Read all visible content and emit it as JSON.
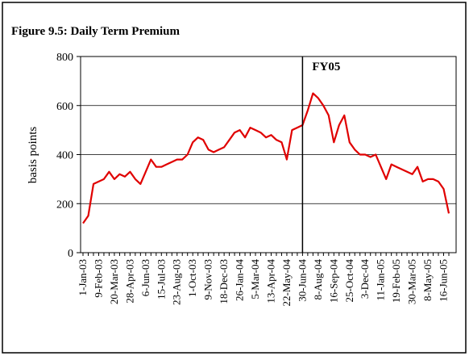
{
  "chart_data": {
    "type": "line",
    "title": "Figure 9.5: Daily Term Premium",
    "ylabel": "basis points",
    "categories": [
      "1-Jan-03",
      null,
      null,
      "9-Feb-03",
      null,
      null,
      "20-Mar-03",
      null,
      null,
      "28-Apr-03",
      null,
      null,
      "6-Jun-03",
      null,
      null,
      "15-Jul-03",
      null,
      null,
      "23-Aug-03",
      null,
      null,
      "1-Oct-03",
      null,
      null,
      "9-Nov-03",
      null,
      null,
      "18-Dec-03",
      null,
      null,
      "26-Jan-04",
      null,
      null,
      "5-Mar-04",
      null,
      null,
      "13-Apr-04",
      null,
      null,
      "22-May-04",
      null,
      null,
      "30-Jun-04",
      null,
      null,
      "8-Aug-04",
      null,
      null,
      "16-Sep-04",
      null,
      null,
      "25-Oct-04",
      null,
      null,
      "3-Dec-04",
      null,
      null,
      "11-Jan-05",
      null,
      null,
      "19-Feb-05",
      null,
      null,
      "30-Mar-05",
      null,
      null,
      "8-May-05",
      null,
      null,
      "16-Jun-05",
      null
    ],
    "series": [
      {
        "name": "Term Premium",
        "color": "#e00000",
        "values": [
          120,
          150,
          280,
          290,
          300,
          330,
          300,
          320,
          310,
          330,
          300,
          280,
          330,
          380,
          350,
          350,
          360,
          370,
          380,
          380,
          400,
          450,
          470,
          460,
          420,
          410,
          420,
          430,
          460,
          490,
          500,
          470,
          510,
          500,
          490,
          470,
          480,
          460,
          450,
          380,
          500,
          510,
          520,
          580,
          650,
          630,
          600,
          560,
          450,
          520,
          560,
          450,
          420,
          400,
          400,
          390,
          400,
          350,
          300,
          360,
          350,
          340,
          330,
          320,
          350,
          290,
          300,
          300,
          290,
          260,
          160
        ]
      }
    ],
    "ylim": [
      0,
      800
    ],
    "yticks": [
      0,
      200,
      400,
      600,
      800
    ],
    "grid": true,
    "annotations": [
      {
        "text": "FY05",
        "x": "30-Jun-04"
      }
    ]
  }
}
